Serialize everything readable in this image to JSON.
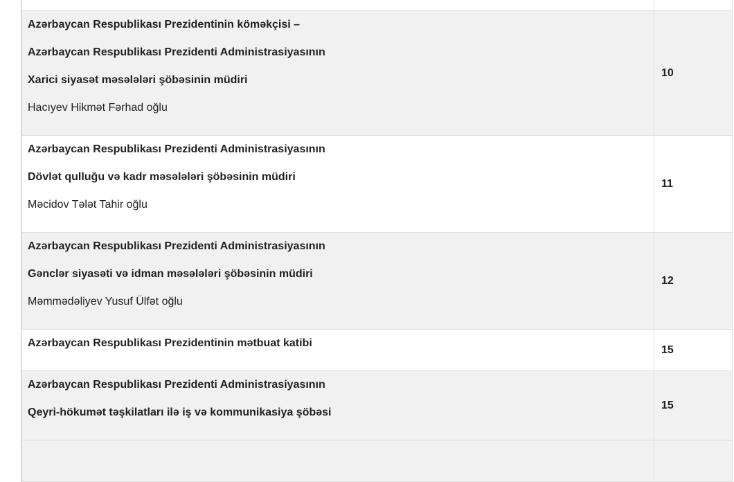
{
  "rows": [
    {
      "title_lines": [
        "Azərbaycan Respublikası Prezidentinin köməkçisi –",
        "Azərbaycan Respublikası Prezidenti Administrasiyasının",
        "Xarici siyasət məsələləri şöbəsinin müdiri"
      ],
      "name": "Hacıyev Hikmət Fərhad oğlu",
      "number": "10"
    },
    {
      "title_lines": [
        "Azərbaycan Respublikası Prezidenti Administrasiyasının",
        "Dövlət qulluğu və kadr məsələləri şöbəsinin müdiri"
      ],
      "name": "Məcidov Tələt Tahir oğlu",
      "number": "11"
    },
    {
      "title_lines": [
        "Azərbaycan Respublikası Prezidenti Administrasiyasının",
        "Gənclər siyasəti və idman məsələləri şöbəsinin müdiri"
      ],
      "name": "Məmmədəliyev  Yusuf  Ülfət oğlu",
      "number": "12"
    },
    {
      "title_lines": [
        "Azərbaycan Respublikası Prezidentinin mətbuat katibi"
      ],
      "number": "15"
    },
    {
      "title_lines": [
        "Azərbaycan Respublikası Prezidenti Administrasiyasının",
        "Qeyri-hökumət təşkilatları ilə iş və kommunikasiya şöbəsi"
      ],
      "number": "15"
    }
  ]
}
